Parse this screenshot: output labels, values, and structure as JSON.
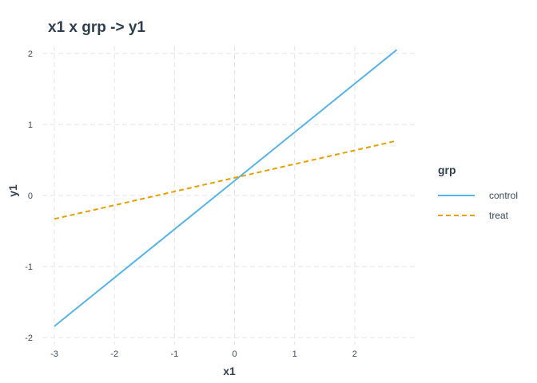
{
  "chart_data": {
    "type": "line",
    "title": "x1 x grp -> y1",
    "xlabel": "x1",
    "ylabel": "y1",
    "xlim": [
      -3.2,
      3.0
    ],
    "ylim": [
      -2.1,
      2.1
    ],
    "x_ticks": [
      -3,
      -2,
      -1,
      0,
      1,
      2
    ],
    "y_ticks": [
      -2,
      -1,
      0,
      1,
      2
    ],
    "grid": true,
    "legend": {
      "title": "grp",
      "position": "right"
    },
    "series": [
      {
        "name": "control",
        "color": "#56B4E9",
        "dash": "solid",
        "x": [
          -3.0,
          2.7
        ],
        "y": [
          -1.84,
          2.05
        ]
      },
      {
        "name": "treat",
        "color": "#E69F00",
        "dash": "dashed",
        "x": [
          -3.0,
          2.7
        ],
        "y": [
          -0.33,
          0.77
        ]
      }
    ]
  }
}
